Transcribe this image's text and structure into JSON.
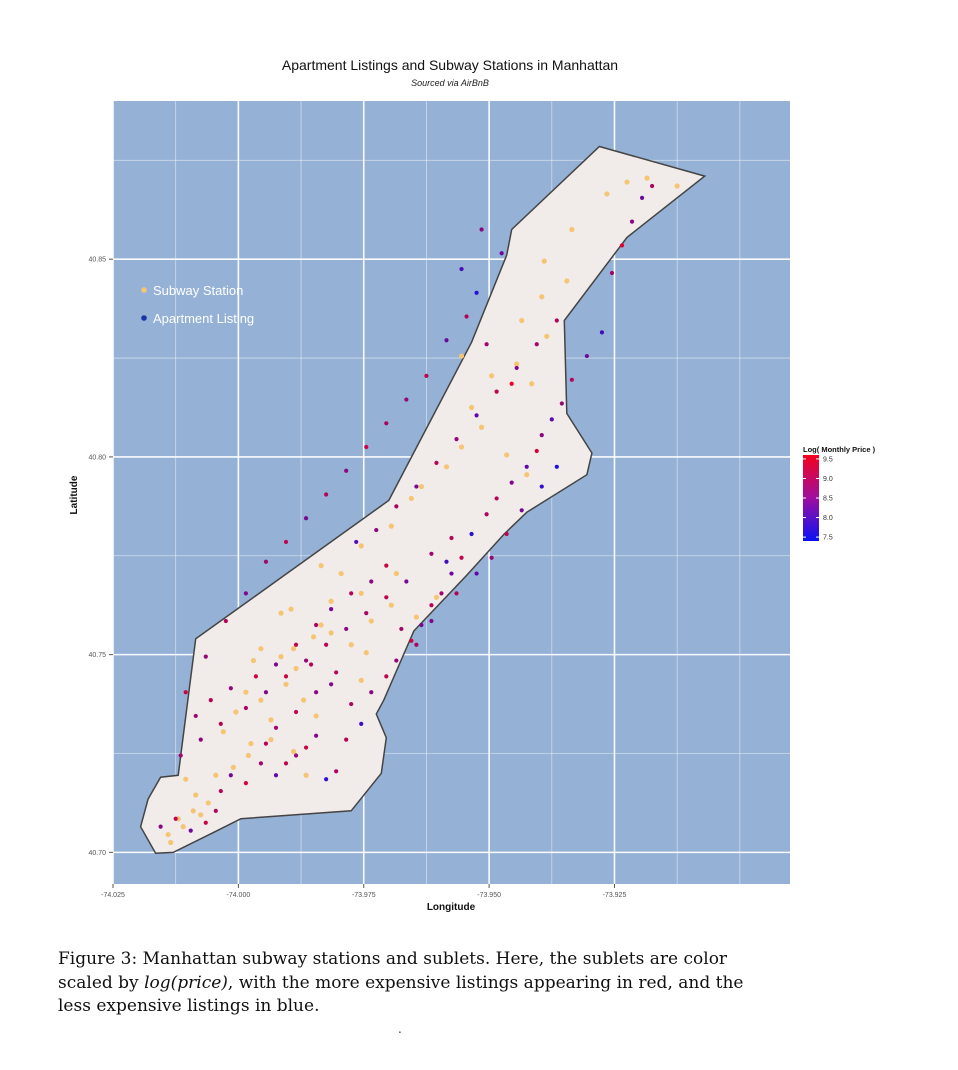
{
  "chart_data": {
    "type": "scatter",
    "title": "Apartment Listings and Subway Stations in Manhattan",
    "subtitle": "Sourced via AirBnB",
    "xlabel": "Longitude",
    "ylabel": "Latitude",
    "xlim": [
      -74.025,
      -73.89
    ],
    "ylim": [
      40.692,
      40.89
    ],
    "x_ticks": [
      -74.025,
      -74.0,
      -73.975,
      -73.95,
      -73.925
    ],
    "x_tick_labels": [
      "-74.025",
      "-74.000",
      "-73.975",
      "-73.950",
      "-73.925"
    ],
    "y_ticks": [
      40.7,
      40.75,
      40.8,
      40.85
    ],
    "y_tick_labels": [
      "40.70",
      "40.75",
      "40.80",
      "40.85"
    ],
    "grid": true,
    "colors": {
      "panel": "#95b1d6",
      "land": "#f1ebea",
      "outline": "#444444",
      "subway": "#f5c573",
      "low_price": "#0a10f5",
      "high_price": "#f5001c"
    },
    "manhattan_outline": [
      [
        -74.0195,
        40.7065
      ],
      [
        -74.018,
        40.7135
      ],
      [
        -74.0155,
        40.719
      ],
      [
        -74.012,
        40.7195
      ],
      [
        -74.0085,
        40.754
      ],
      [
        -73.97,
        40.789
      ],
      [
        -73.9535,
        40.829
      ],
      [
        -73.9465,
        40.851
      ],
      [
        -73.9455,
        40.8575
      ],
      [
        -73.928,
        40.8785
      ],
      [
        -73.907,
        40.871
      ],
      [
        -73.9225,
        40.8555
      ],
      [
        -73.935,
        40.8345
      ],
      [
        -73.9345,
        40.811
      ],
      [
        -73.9295,
        40.801
      ],
      [
        -73.9305,
        40.7955
      ],
      [
        -73.9425,
        40.786
      ],
      [
        -73.947,
        40.7805
      ],
      [
        -73.9545,
        40.77
      ],
      [
        -73.965,
        40.756
      ],
      [
        -73.971,
        40.7385
      ],
      [
        -73.9725,
        40.735
      ],
      [
        -73.9705,
        40.729
      ],
      [
        -73.9715,
        40.72
      ],
      [
        -73.9775,
        40.7105
      ],
      [
        -73.9995,
        40.7085
      ],
      [
        -74.005,
        40.705
      ],
      [
        -74.013,
        40.7
      ],
      [
        -74.0165,
        40.6998
      ]
    ],
    "legend": {
      "items": [
        "Subway Station",
        "Apartment Listing"
      ],
      "placement": "inside-top-left"
    },
    "colorbar": {
      "title": "Log( Monthly Price )",
      "ticks": [
        9.5,
        9.0,
        8.5,
        8.0,
        7.5
      ],
      "tick_labels": [
        "9.5",
        "9.0",
        "8.5",
        "8.0",
        "7.5"
      ],
      "range": [
        7.4,
        9.6
      ],
      "placement": "right"
    },
    "series": [
      {
        "name": "Subway Station",
        "color": "#f5c573",
        "x": [
          -74.014,
          -74.012,
          -74.011,
          -74.009,
          -74.0075,
          -74.006,
          -74.0085,
          -74.0135,
          -74.0105,
          -74.0045,
          -74.001,
          -74.003,
          -73.998,
          -73.9935,
          -73.989,
          -73.9955,
          -73.9905,
          -73.987,
          -73.9845,
          -73.9915,
          -73.989,
          -73.985,
          -73.9815,
          -73.9775,
          -73.9735,
          -73.9815,
          -73.9755,
          -73.9695,
          -73.9795,
          -73.9755,
          -73.9695,
          -73.9835,
          -73.9895,
          -73.9955,
          -73.9985,
          -73.997,
          -73.9915,
          -73.9835,
          -73.9745,
          -73.9645,
          -73.9605,
          -73.9685,
          -73.9635,
          -73.9585,
          -73.9555,
          -73.9515,
          -73.9465,
          -73.9535,
          -73.9495,
          -73.9445,
          -73.9415,
          -73.9385,
          -73.9435,
          -73.9395,
          -73.9345,
          -73.939,
          -73.9335,
          -73.9265,
          -73.9225,
          -73.9185,
          -73.9125,
          -73.9555,
          -73.9425,
          -73.9975,
          -73.9865,
          -73.9755,
          -73.9655,
          -74.0005,
          -73.9935,
          -73.9885
        ],
        "y": [
          40.7045,
          40.7085,
          40.7065,
          40.7105,
          40.7095,
          40.7125,
          40.7145,
          40.7025,
          40.7185,
          40.7195,
          40.7215,
          40.7305,
          40.7245,
          40.7285,
          40.7255,
          40.7385,
          40.7425,
          40.7385,
          40.7345,
          40.7495,
          40.7515,
          40.7545,
          40.7555,
          40.7525,
          40.7585,
          40.7635,
          40.7655,
          40.7625,
          40.7705,
          40.7775,
          40.7825,
          40.7725,
          40.7615,
          40.7515,
          40.7405,
          40.7485,
          40.7605,
          40.7575,
          40.7505,
          40.7595,
          40.7645,
          40.7705,
          40.7925,
          40.7975,
          40.8025,
          40.8075,
          40.8005,
          40.8125,
          40.8205,
          40.8235,
          40.8185,
          40.8305,
          40.8345,
          40.8405,
          40.8445,
          40.8495,
          40.8575,
          40.8665,
          40.8695,
          40.8705,
          40.8685,
          40.8255,
          40.7955,
          40.7275,
          40.7195,
          40.7435,
          40.7895,
          40.7355,
          40.7335,
          40.7465
        ]
      },
      {
        "name": "Apartment Listing",
        "x": [
          -74.0155,
          -74.0125,
          -74.0095,
          -74.0065,
          -74.0045,
          -74.0035,
          -74.0015,
          -73.9985,
          -73.9955,
          -73.9945,
          -73.9925,
          -73.9905,
          -73.9885,
          -73.9865,
          -73.9845,
          -73.9825,
          -73.9805,
          -73.9785,
          -73.9755,
          -73.9735,
          -73.9705,
          -73.9685,
          -73.9655,
          -73.9635,
          -73.9615,
          -73.9595,
          -73.9575,
          -73.9555,
          -73.9535,
          -73.9505,
          -73.9485,
          -73.9455,
          -73.9425,
          -73.9405,
          -73.9395,
          -73.9375,
          -73.9355,
          -73.9335,
          -73.9305,
          -73.9275,
          -73.9255,
          -73.9235,
          -73.9215,
          -73.9195,
          -73.9175,
          -74.0085,
          -74.0055,
          -74.0015,
          -73.9965,
          -73.9925,
          -73.9885,
          -73.9845,
          -73.9815,
          -73.9775,
          -73.9735,
          -73.9705,
          -73.9675,
          -73.9645,
          -73.9615,
          -73.9565,
          -73.9525,
          -73.9495,
          -73.9465,
          -73.9435,
          -73.9395,
          -73.9365,
          -73.9455,
          -73.9505,
          -73.9545,
          -73.9585,
          -73.9625,
          -73.9665,
          -73.9705,
          -73.9745,
          -73.9785,
          -73.9825,
          -73.9865,
          -73.9905,
          -73.9945,
          -73.9985,
          -74.0025,
          -74.0065,
          -74.0105,
          -73.9805,
          -73.9845,
          -73.9885,
          -73.9925,
          -73.9775,
          -73.9815,
          -73.9855,
          -73.9765,
          -73.9725,
          -73.9685,
          -73.9645,
          -73.9605,
          -73.9565,
          -73.9525,
          -73.9485,
          -73.9445,
          -73.9405,
          -73.9365,
          -73.9525,
          -73.9555,
          -73.9475,
          -73.9515,
          -73.9575,
          -73.9615,
          -73.9665,
          -73.9705,
          -73.9745,
          -73.9785,
          -73.9825,
          -73.9865,
          -73.9905,
          -73.9945,
          -73.9985,
          -74.0035,
          -74.0075,
          -74.0115,
          -73.9585
        ],
        "y": [
          40.7065,
          40.7085,
          40.7055,
          40.7075,
          40.7105,
          40.7155,
          40.7195,
          40.7175,
          40.7225,
          40.7275,
          40.7195,
          40.7225,
          40.7245,
          40.7265,
          40.7295,
          40.7185,
          40.7205,
          40.7285,
          40.7325,
          40.7405,
          40.7445,
          40.7485,
          40.7535,
          40.7575,
          40.7625,
          40.7655,
          40.7705,
          40.7745,
          40.7805,
          40.7855,
          40.7895,
          40.7935,
          40.7975,
          40.8015,
          40.8055,
          40.8095,
          40.8135,
          40.8195,
          40.8255,
          40.8315,
          40.8465,
          40.8535,
          40.8595,
          40.8655,
          40.8685,
          40.7345,
          40.7385,
          40.7415,
          40.7445,
          40.7475,
          40.7525,
          40.7575,
          40.7615,
          40.7655,
          40.7685,
          40.7725,
          40.7565,
          40.7525,
          40.7585,
          40.7655,
          40.7705,
          40.7745,
          40.7805,
          40.7865,
          40.7925,
          40.7975,
          40.8185,
          40.8285,
          40.8355,
          40.8295,
          40.8205,
          40.8145,
          40.8085,
          40.8025,
          40.7965,
          40.7905,
          40.7845,
          40.7785,
          40.7735,
          40.7655,
          40.7585,
          40.7495,
          40.7405,
          40.7455,
          40.7405,
          40.7355,
          40.7315,
          40.7375,
          40.7425,
          40.7475,
          40.7785,
          40.7815,
          40.7875,
          40.7925,
          40.7985,
          40.8045,
          40.8105,
          40.8165,
          40.8225,
          40.8285,
          40.8345,
          40.8415,
          40.8475,
          40.8515,
          40.8575,
          40.7795,
          40.7755,
          40.7685,
          40.7645,
          40.7605,
          40.7565,
          40.7525,
          40.7485,
          40.7445,
          40.7405,
          40.7365,
          40.7325,
          40.7285,
          40.7245,
          40.7735
        ],
        "log_price": [
          8.6,
          9.1,
          8.3,
          9.2,
          8.9,
          9.0,
          8.4,
          9.3,
          8.8,
          9.0,
          8.2,
          9.1,
          8.7,
          9.2,
          8.5,
          7.8,
          8.9,
          9.0,
          7.9,
          8.6,
          9.1,
          8.7,
          9.2,
          8.4,
          9.0,
          8.8,
          8.3,
          9.1,
          7.7,
          8.9,
          9.0,
          8.5,
          8.2,
          9.3,
          8.6,
          8.1,
          8.7,
          9.0,
          8.4,
          7.9,
          8.8,
          9.4,
          8.6,
          8.3,
          8.9,
          8.8,
          9.0,
          8.7,
          9.2,
          8.5,
          9.1,
          8.9,
          8.4,
          9.0,
          8.6,
          9.2,
          8.8,
          8.9,
          8.5,
          9.0,
          8.2,
          8.7,
          9.1,
          8.4,
          7.8,
          7.6,
          9.5,
          8.8,
          9.0,
          8.3,
          9.1,
          8.7,
          8.9,
          9.2,
          8.6,
          9.0,
          8.4,
          9.1,
          8.8,
          8.5,
          9.0,
          8.7,
          9.2,
          9.0,
          8.6,
          9.1,
          8.8,
          8.9,
          8.5,
          9.0,
          8.1,
          8.6,
          8.9,
          8.4,
          9.0,
          8.7,
          8.2,
          9.1,
          8.5,
          8.8,
          9.0,
          7.7,
          8.0,
          8.3,
          8.6,
          9.0,
          8.8,
          8.4,
          9.1,
          8.9,
          8.6,
          9.0,
          8.7,
          9.2,
          8.5,
          8.9,
          9.0,
          8.6,
          8.8,
          7.9
        ]
      }
    ]
  },
  "caption": {
    "lead": "Figure 3: Manhattan subway stations and sublets. Here, the sublets are color scaled by ",
    "emph": "log(price)",
    "tail": ", with the more expensive listings appearing in red, and the less expensive listings in blue."
  },
  "footer_mark": "."
}
